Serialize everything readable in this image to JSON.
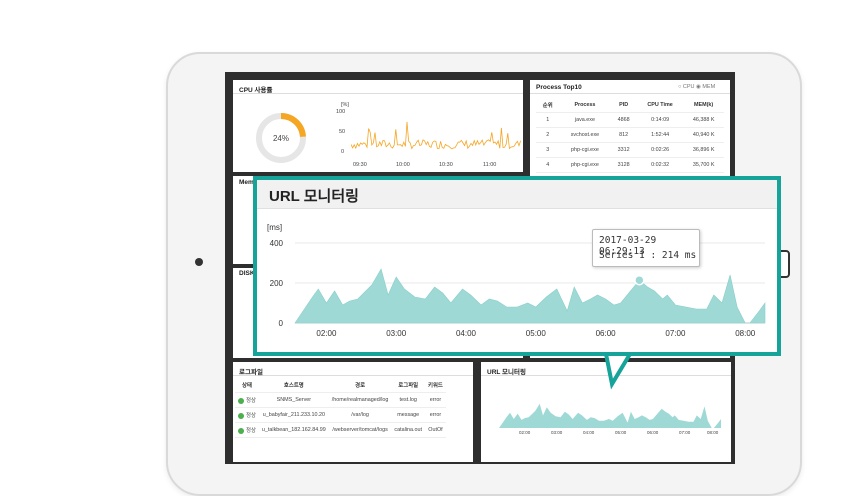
{
  "cpu": {
    "title": "CPU 사용률",
    "percent": "24%",
    "percent_value": 24,
    "unit": "[%]",
    "y_ticks": [
      "100",
      "50",
      "0"
    ],
    "x_ticks": [
      "09:30",
      "10:00",
      "10:30",
      "11:00"
    ],
    "line_color": "#f5a623"
  },
  "mem": {
    "title": "Mem"
  },
  "disk": {
    "title": "DISK"
  },
  "process": {
    "title": "Process Top10",
    "options": [
      "CPU",
      "MEM"
    ],
    "selected_option": "MEM",
    "columns": [
      "순위",
      "Process",
      "PID",
      "CPU Time",
      "MEM(k)"
    ],
    "rows": [
      [
        "1",
        "java.exe",
        "4868",
        "0:14:09",
        "46,388 K"
      ],
      [
        "2",
        "svchost.exe",
        "812",
        "1:52:44",
        "40,940 K"
      ],
      [
        "3",
        "php-cgi.exe",
        "3312",
        "0:02:26",
        "36,896 K"
      ],
      [
        "4",
        "php-cgi.exe",
        "3128",
        "0:02:32",
        "35,700 K"
      ]
    ]
  },
  "log": {
    "title": "로그파일",
    "columns": [
      "상태",
      "호스트명",
      "경로",
      "로그파일",
      "키워드"
    ],
    "rows": [
      [
        "정상",
        "SNMS_Server",
        "/home/realmanaged/log",
        "test.log",
        "error"
      ],
      [
        "정상",
        "u_babyfair_211.233.10.20",
        "/var/log",
        "message",
        "error"
      ],
      [
        "정상",
        "u_talkbean_182.162.84.99",
        "/webserver/tomcat/logs",
        "catalina.out",
        "OutOf"
      ]
    ]
  },
  "url_small": {
    "title": "URL 모니터링",
    "x_ticks": [
      "02:00",
      "03:00",
      "04:00",
      "05:00",
      "06:00",
      "07:00",
      "08:00"
    ]
  },
  "url_popup": {
    "title": "URL 모니터링",
    "tooltip_time": "2017-03-29 06:29:13",
    "tooltip_value": "Series 1 : 214 ms",
    "accent_color": "#16a39a",
    "area_color": "#9fd9d6"
  },
  "chart_data": {
    "type": "area",
    "title": "URL 모니터링",
    "ylabel": "[ms]",
    "xlabel": "",
    "ylim": [
      0,
      400
    ],
    "y_ticks": [
      0,
      200,
      400
    ],
    "x_ticks": [
      "02:00",
      "03:00",
      "04:00",
      "05:00",
      "06:00",
      "07:00",
      "08:00"
    ],
    "grid": true,
    "series": [
      {
        "color": "#9fd9d6",
        "x": [
          "01:33",
          "01:48",
          "01:53",
          "02:00",
          "02:07",
          "02:14",
          "02:20",
          "02:27",
          "02:39",
          "02:47",
          "02:53",
          "03:00",
          "03:07",
          "03:16",
          "03:25",
          "03:33",
          "03:40",
          "03:47",
          "03:57",
          "04:04",
          "04:13",
          "04:20",
          "04:27",
          "04:35",
          "04:44",
          "04:53",
          "05:00",
          "05:09",
          "05:18",
          "05:27",
          "05:33",
          "05:40",
          "05:47",
          "05:53",
          "06:00",
          "06:07",
          "06:13",
          "06:20",
          "06:29",
          "06:36",
          "06:42",
          "06:49",
          "06:53",
          "07:00",
          "07:09",
          "07:18",
          "07:27",
          "07:33",
          "07:40",
          "07:47",
          "07:53",
          "08:00",
          "08:04",
          "08:12",
          "08:17"
        ],
        "values": [
          0,
          130,
          170,
          100,
          160,
          90,
          110,
          120,
          190,
          270,
          140,
          230,
          170,
          130,
          120,
          180,
          150,
          100,
          170,
          140,
          90,
          120,
          110,
          80,
          80,
          100,
          80,
          130,
          170,
          60,
          180,
          100,
          120,
          140,
          120,
          90,
          100,
          150,
          214,
          180,
          160,
          120,
          140,
          90,
          80,
          70,
          70,
          140,
          100,
          240,
          80,
          0,
          0,
          60,
          100
        ]
      }
    ]
  }
}
